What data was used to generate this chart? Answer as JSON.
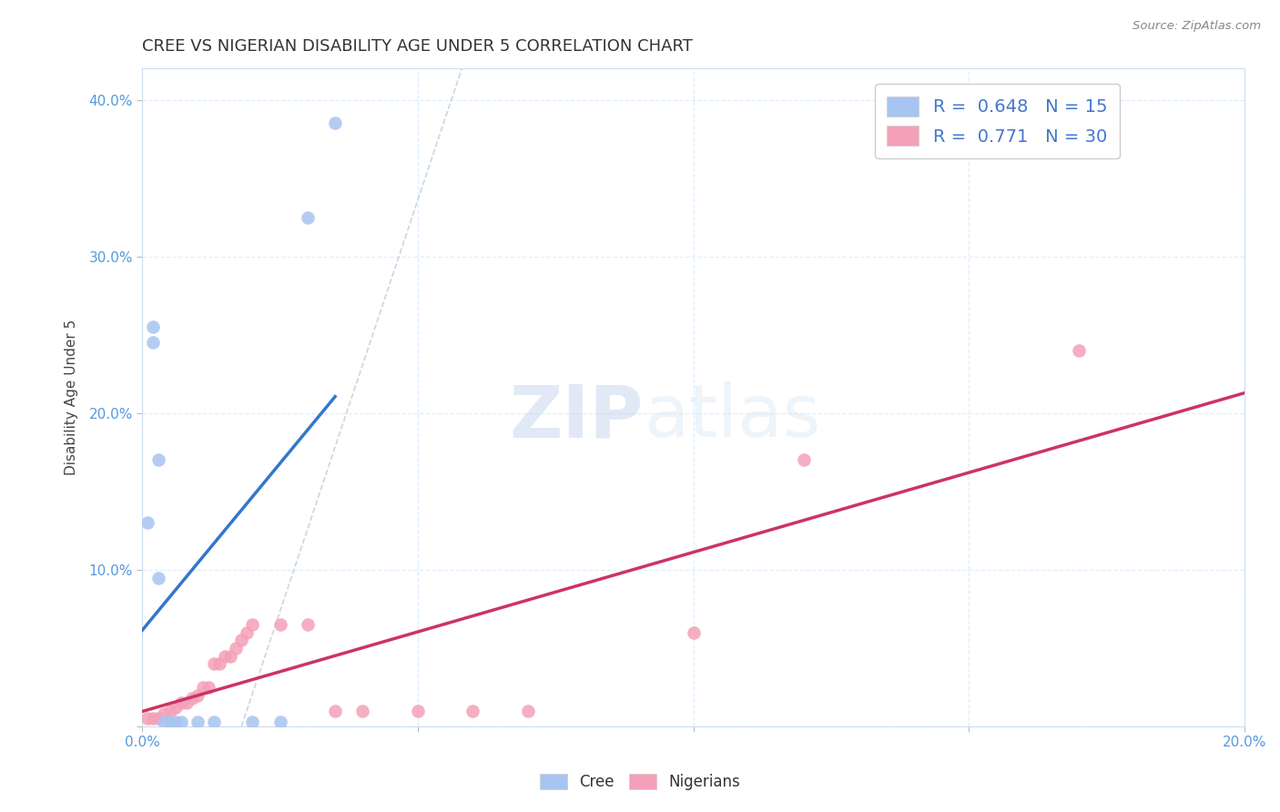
{
  "title": "CREE VS NIGERIAN DISABILITY AGE UNDER 5 CORRELATION CHART",
  "source": "Source: ZipAtlas.com",
  "ylabel": "Disability Age Under 5",
  "xlabel": "",
  "xlim": [
    0.0,
    0.2
  ],
  "ylim": [
    0.0,
    0.42
  ],
  "x_ticks": [
    0.0,
    0.05,
    0.1,
    0.15,
    0.2
  ],
  "x_tick_labels": [
    "0.0%",
    "",
    "",
    "",
    "20.0%"
  ],
  "y_ticks": [
    0.0,
    0.1,
    0.2,
    0.3,
    0.4
  ],
  "y_tick_labels": [
    "",
    "10.0%",
    "20.0%",
    "30.0%",
    "40.0%"
  ],
  "background_color": "#ffffff",
  "cree_color": "#a8c4f0",
  "nigerian_color": "#f4a0b8",
  "cree_line_color": "#3377cc",
  "nigerian_line_color": "#cc3366",
  "R_cree": 0.648,
  "N_cree": 15,
  "R_nigerian": 0.771,
  "N_nigerian": 30,
  "cree_points_x": [
    0.001,
    0.002,
    0.002,
    0.003,
    0.003,
    0.004,
    0.005,
    0.006,
    0.007,
    0.01,
    0.013,
    0.02,
    0.025,
    0.03,
    0.035
  ],
  "cree_points_y": [
    0.13,
    0.245,
    0.255,
    0.17,
    0.095,
    0.003,
    0.003,
    0.003,
    0.003,
    0.003,
    0.003,
    0.003,
    0.003,
    0.325,
    0.385
  ],
  "nigerian_points_x": [
    0.001,
    0.002,
    0.003,
    0.004,
    0.005,
    0.006,
    0.007,
    0.008,
    0.009,
    0.01,
    0.011,
    0.012,
    0.013,
    0.014,
    0.015,
    0.016,
    0.017,
    0.018,
    0.019,
    0.02,
    0.025,
    0.03,
    0.035,
    0.04,
    0.05,
    0.06,
    0.07,
    0.1,
    0.12,
    0.17
  ],
  "nigerian_points_y": [
    0.005,
    0.005,
    0.005,
    0.008,
    0.01,
    0.012,
    0.015,
    0.015,
    0.018,
    0.02,
    0.025,
    0.025,
    0.04,
    0.04,
    0.045,
    0.045,
    0.05,
    0.055,
    0.06,
    0.065,
    0.065,
    0.065,
    0.01,
    0.01,
    0.01,
    0.01,
    0.01,
    0.06,
    0.17,
    0.24
  ],
  "watermark_zip": "ZIP",
  "watermark_atlas": "atlas",
  "legend_fontsize": 14,
  "title_fontsize": 13,
  "axis_label_fontsize": 11,
  "tick_fontsize": 11,
  "tick_color": "#5599dd",
  "grid_color": "#ddeeff",
  "spine_color": "#ccddee"
}
